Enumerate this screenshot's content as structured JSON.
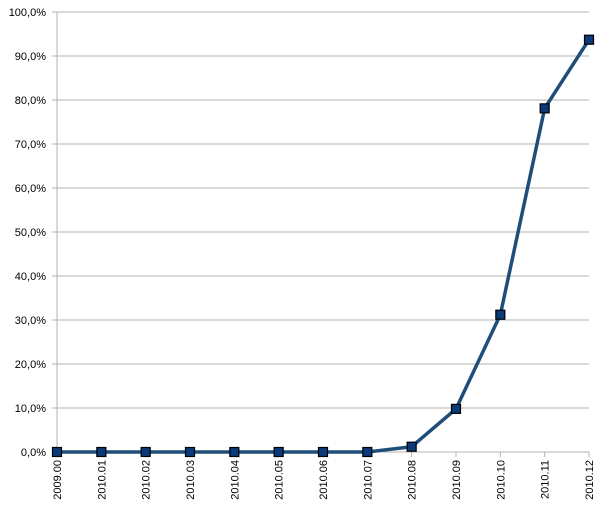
{
  "chart_data": {
    "type": "line",
    "x": [
      "2009.00",
      "2010.01",
      "2010.02",
      "2010.03",
      "2010.04",
      "2010.05",
      "2010.06",
      "2010.07",
      "2010.08",
      "2010.09",
      "2010.10",
      "2010.11",
      "2010.12"
    ],
    "series": [
      {
        "values": [
          0.0,
          0.0,
          0.0,
          0.0,
          0.0,
          0.0,
          0.0,
          0.0,
          1.2,
          9.8,
          31.2,
          78.1,
          93.7
        ]
      }
    ],
    "y_ticks": [
      "0,0%",
      "10,0%",
      "20,0%",
      "30,0%",
      "40,0%",
      "50,0%",
      "60,0%",
      "70,0%",
      "80,0%",
      "90,0%",
      "100,0%"
    ],
    "ylim": [
      0,
      100
    ],
    "grid": "horizontal",
    "title": "",
    "xlabel": "",
    "ylabel": "",
    "line_color": "#1f4e79",
    "marker": "square",
    "marker_color": "#0b3a7a"
  }
}
